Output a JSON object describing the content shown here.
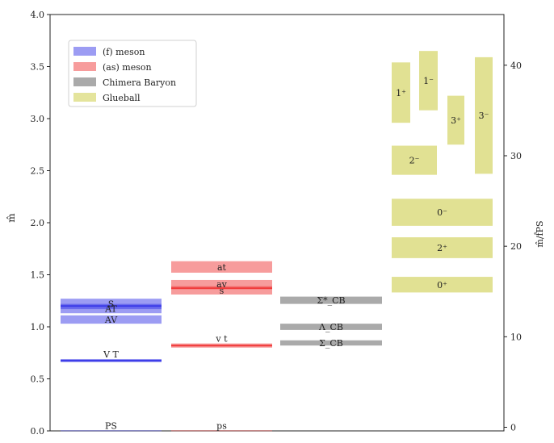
{
  "chart_data": {
    "type": "bar",
    "title": "",
    "ylabel": "m̂",
    "y2label": "m̂/f̂PS",
    "ylim": [
      0,
      4.0
    ],
    "y2lim": [
      -0.4,
      45.6
    ],
    "yticks": [
      "0.0",
      "0.5",
      "1.0",
      "1.5",
      "2.0",
      "2.5",
      "3.0",
      "3.5",
      "4.0"
    ],
    "y2ticks": [
      "0",
      "10",
      "20",
      "30",
      "40"
    ],
    "grid": false,
    "legend_position": "top-left",
    "colors": {
      "f_meson": "#3a3ae8",
      "as_meson": "#f03a3a",
      "chimera": "#555555",
      "glueball": "#c9c93a"
    },
    "legend": [
      {
        "label": "(f) meson",
        "color_key": "f_meson"
      },
      {
        "label": "(as) meson",
        "color_key": "as_meson"
      },
      {
        "label": "Chimera Baryon",
        "color_key": "chimera"
      },
      {
        "label": "Glueball",
        "color_key": "glueball"
      }
    ],
    "series": [
      {
        "name": "(f) meson",
        "color_key": "f_meson",
        "column": 0,
        "bands": [
          {
            "label": "PS",
            "low": 0.0,
            "high": 0.005
          },
          {
            "label": "V T",
            "low": 0.66,
            "high": 0.69
          },
          {
            "label": "AV",
            "low": 1.03,
            "high": 1.11
          },
          {
            "label": "AT",
            "low": 1.13,
            "high": 1.22
          },
          {
            "label": "S",
            "low": 1.17,
            "high": 1.27
          }
        ],
        "lines": [
          {
            "value": 0.675
          },
          {
            "value": 1.2
          }
        ]
      },
      {
        "name": "(as) meson",
        "color_key": "as_meson",
        "column": 1,
        "bands": [
          {
            "label": "ps",
            "low": 0.0,
            "high": 0.005
          },
          {
            "label": "v t",
            "low": 0.8,
            "high": 0.84
          },
          {
            "label": "s",
            "low": 1.31,
            "high": 1.39
          },
          {
            "label": "av",
            "low": 1.37,
            "high": 1.45
          },
          {
            "label": "at",
            "low": 1.52,
            "high": 1.63
          }
        ],
        "lines": [
          {
            "value": 0.82
          },
          {
            "value": 1.37
          }
        ]
      },
      {
        "name": "Chimera Baryon",
        "color_key": "chimera",
        "column": 2,
        "bands": [
          {
            "label": "Σ_CB",
            "low": 0.82,
            "high": 0.87
          },
          {
            "label": "Λ_CB",
            "low": 0.97,
            "high": 1.03
          },
          {
            "label": "Σ*_CB",
            "low": 1.22,
            "high": 1.29
          }
        ],
        "lines": []
      },
      {
        "name": "Glueball",
        "color_key": "glueball",
        "column": 3,
        "bands": [
          {
            "label": "0⁺",
            "low": 1.33,
            "high": 1.48,
            "sub": "full"
          },
          {
            "label": "2⁺",
            "low": 1.66,
            "high": 1.86,
            "sub": "full"
          },
          {
            "label": "0⁻",
            "low": 1.97,
            "high": 2.23,
            "sub": "full"
          },
          {
            "label": "2⁻",
            "low": 2.46,
            "high": 2.74,
            "sub": "left"
          },
          {
            "label": "1⁺",
            "low": 2.96,
            "high": 3.54,
            "sub": "s1"
          },
          {
            "label": "1⁻",
            "low": 3.08,
            "high": 3.65,
            "sub": "s2"
          },
          {
            "label": "3⁺",
            "low": 2.75,
            "high": 3.22,
            "sub": "s3"
          },
          {
            "label": "3⁻",
            "low": 2.47,
            "high": 3.59,
            "sub": "s4"
          }
        ],
        "lines": []
      }
    ]
  }
}
